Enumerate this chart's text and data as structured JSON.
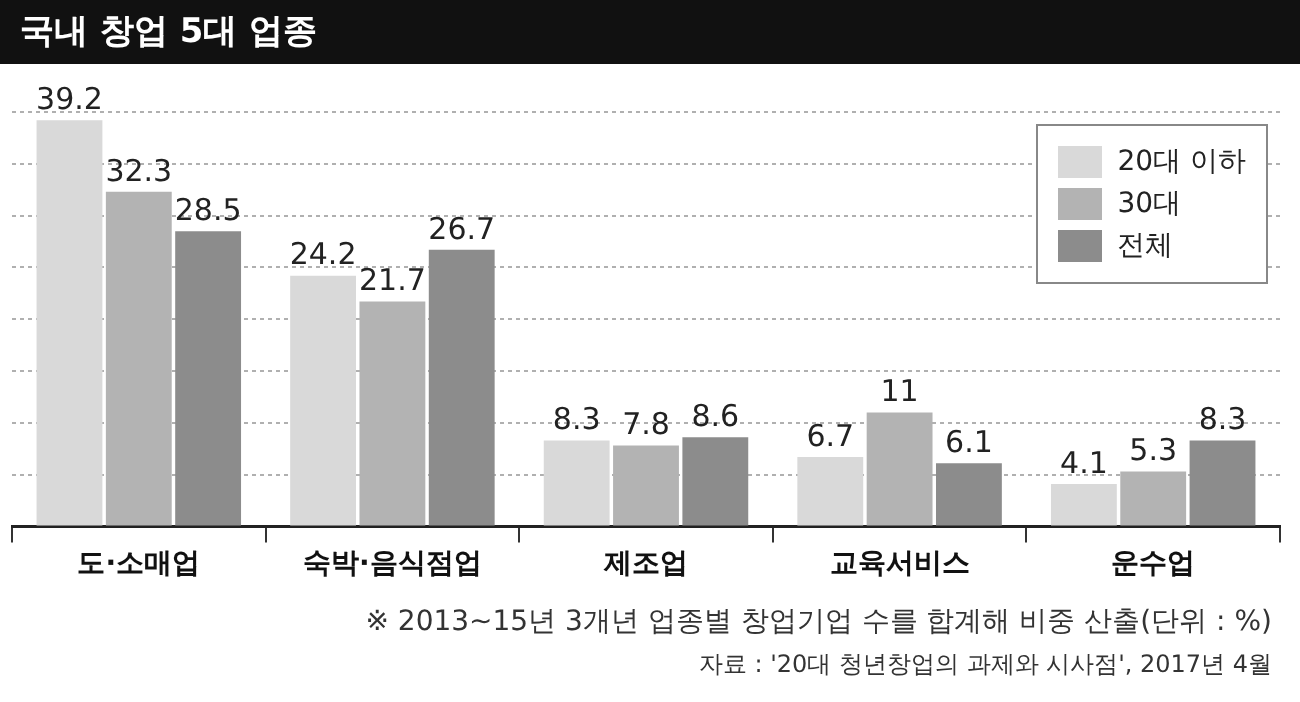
{
  "chart_data": {
    "type": "bar",
    "title": "국내 창업 5대 업종",
    "categories": [
      "도·소매업",
      "숙박·음식점업",
      "제조업",
      "교육서비스",
      "운수업"
    ],
    "series": [
      {
        "name": "20대 이하",
        "color": "#d9d9d9",
        "values": [
          39.2,
          24.2,
          8.3,
          6.7,
          4.1
        ]
      },
      {
        "name": "30대",
        "color": "#b3b3b3",
        "values": [
          32.3,
          21.7,
          7.8,
          11,
          5.3
        ]
      },
      {
        "name": "전체",
        "color": "#8c8c8c",
        "values": [
          28.5,
          26.7,
          8.6,
          6.1,
          8.3
        ]
      }
    ],
    "ylim": [
      0,
      40
    ],
    "yticks": [
      {
        "value": 0,
        "label": null
      },
      {
        "value": 5,
        "label": null
      },
      {
        "value": 10,
        "label": null
      },
      {
        "value": 15,
        "label": null
      },
      {
        "value": 20,
        "label": null
      },
      {
        "value": 25,
        "label": null
      },
      {
        "value": 30,
        "label": null
      },
      {
        "value": 35,
        "label": null
      },
      {
        "value": 40,
        "label": null
      }
    ],
    "tick_labels": "x",
    "grid": "y",
    "legend": "top right",
    "data_labels": true,
    "annotations": [
      "※ 2013~15년 3개년 업종별 창업기업 수를 합계해 비중 산출(단위 : %)",
      "자료 : '20대 청년창업의 과제와 시사점', 2017년 4월"
    ]
  }
}
